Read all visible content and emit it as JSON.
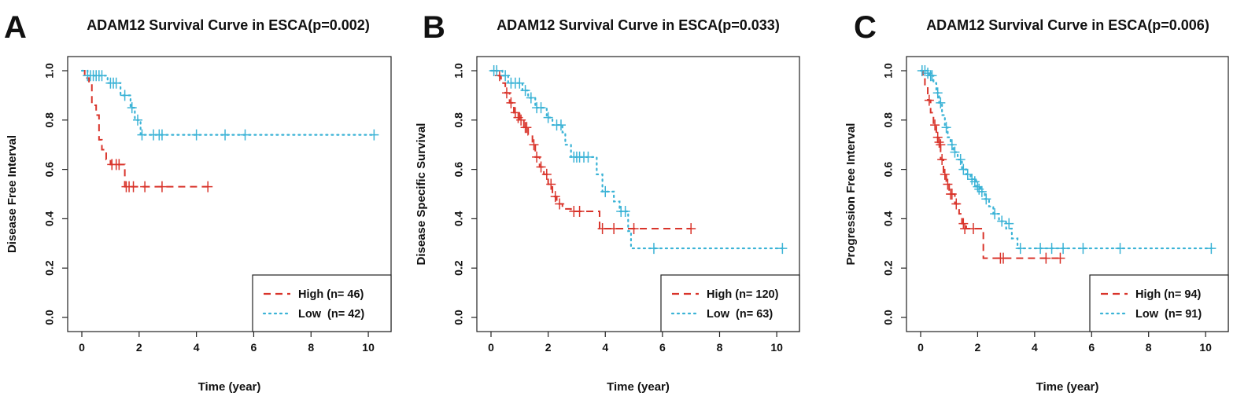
{
  "chart_data": [
    {
      "type": "line",
      "panel": "A",
      "title": "ADAM12 Survival Curve in ESCA(p=0.002)",
      "xlabel": "Time (year)",
      "ylabel": "Disease Free Interval",
      "xlim": [
        0,
        10.3
      ],
      "ylim": [
        0,
        1.0
      ],
      "xticks": [
        "0",
        "2",
        "4",
        "6",
        "8",
        "10"
      ],
      "yticks": [
        "0.0",
        "0.2",
        "0.4",
        "0.6",
        "0.8",
        "1.0"
      ],
      "legend_position": "bottom-right",
      "legend": [
        "High (n= 46)",
        "Low  (n= 42)"
      ],
      "series": [
        {
          "name": "High (n= 46)",
          "color": "#d9342b",
          "style": "dashed",
          "steps": [
            [
              0,
              1.0
            ],
            [
              0.1,
              0.97
            ],
            [
              0.25,
              0.95
            ],
            [
              0.35,
              0.86
            ],
            [
              0.5,
              0.82
            ],
            [
              0.6,
              0.72
            ],
            [
              0.7,
              0.68
            ],
            [
              0.85,
              0.64
            ],
            [
              1.0,
              0.62
            ],
            [
              1.5,
              0.53
            ],
            [
              4.4,
              0.53
            ]
          ],
          "censors": [
            [
              1.05,
              0.62
            ],
            [
              1.2,
              0.62
            ],
            [
              1.3,
              0.62
            ],
            [
              1.55,
              0.53
            ],
            [
              1.65,
              0.53
            ],
            [
              1.8,
              0.53
            ],
            [
              2.2,
              0.53
            ],
            [
              2.8,
              0.53
            ],
            [
              4.4,
              0.53
            ]
          ]
        },
        {
          "name": "Low  (n= 42)",
          "color": "#3bb3d6",
          "style": "dotted",
          "steps": [
            [
              0,
              1.0
            ],
            [
              0.2,
              0.98
            ],
            [
              0.9,
              0.95
            ],
            [
              1.35,
              0.9
            ],
            [
              1.7,
              0.85
            ],
            [
              1.85,
              0.8
            ],
            [
              2.05,
              0.74
            ],
            [
              10.2,
              0.74
            ]
          ],
          "censors": [
            [
              0.2,
              0.98
            ],
            [
              0.3,
              0.98
            ],
            [
              0.4,
              0.98
            ],
            [
              0.5,
              0.98
            ],
            [
              0.6,
              0.98
            ],
            [
              0.7,
              0.98
            ],
            [
              1.0,
              0.95
            ],
            [
              1.1,
              0.95
            ],
            [
              1.2,
              0.95
            ],
            [
              1.5,
              0.9
            ],
            [
              1.75,
              0.85
            ],
            [
              1.95,
              0.8
            ],
            [
              2.1,
              0.74
            ],
            [
              2.5,
              0.74
            ],
            [
              2.7,
              0.74
            ],
            [
              2.8,
              0.74
            ],
            [
              4.0,
              0.74
            ],
            [
              5.0,
              0.74
            ],
            [
              5.7,
              0.74
            ],
            [
              10.2,
              0.74
            ]
          ]
        }
      ]
    },
    {
      "type": "line",
      "panel": "B",
      "title": "ADAM12 Survival Curve in ESCA(p=0.033)",
      "xlabel": "Time (year)",
      "ylabel": "Disease Specific Survival",
      "xlim": [
        0,
        10.3
      ],
      "ylim": [
        0,
        1.0
      ],
      "xticks": [
        "0",
        "2",
        "4",
        "6",
        "8",
        "10"
      ],
      "yticks": [
        "0.0",
        "0.2",
        "0.4",
        "0.6",
        "0.8",
        "1.0"
      ],
      "legend_position": "bottom-right",
      "legend": [
        "High (n= 120)",
        "Low  (n= 63)"
      ],
      "series": [
        {
          "name": "High (n= 120)",
          "color": "#d9342b",
          "style": "dashed",
          "steps": [
            [
              0,
              1.0
            ],
            [
              0.2,
              0.98
            ],
            [
              0.35,
              0.95
            ],
            [
              0.5,
              0.91
            ],
            [
              0.65,
              0.87
            ],
            [
              0.8,
              0.83
            ],
            [
              1.0,
              0.8
            ],
            [
              1.15,
              0.77
            ],
            [
              1.3,
              0.74
            ],
            [
              1.45,
              0.7
            ],
            [
              1.55,
              0.65
            ],
            [
              1.7,
              0.61
            ],
            [
              1.85,
              0.58
            ],
            [
              2.0,
              0.54
            ],
            [
              2.15,
              0.49
            ],
            [
              2.3,
              0.46
            ],
            [
              2.5,
              0.44
            ],
            [
              2.8,
              0.43
            ],
            [
              3.8,
              0.36
            ],
            [
              7.0,
              0.36
            ]
          ],
          "censors": [
            [
              0.3,
              0.98
            ],
            [
              0.55,
              0.91
            ],
            [
              0.7,
              0.87
            ],
            [
              0.85,
              0.83
            ],
            [
              0.95,
              0.81
            ],
            [
              1.05,
              0.8
            ],
            [
              1.2,
              0.77
            ],
            [
              1.25,
              0.77
            ],
            [
              1.5,
              0.7
            ],
            [
              1.6,
              0.65
            ],
            [
              1.75,
              0.61
            ],
            [
              1.95,
              0.58
            ],
            [
              2.1,
              0.54
            ],
            [
              2.25,
              0.49
            ],
            [
              2.4,
              0.46
            ],
            [
              2.9,
              0.43
            ],
            [
              3.1,
              0.43
            ],
            [
              3.9,
              0.36
            ],
            [
              4.3,
              0.36
            ],
            [
              5.0,
              0.36
            ],
            [
              7.0,
              0.36
            ]
          ]
        },
        {
          "name": "Low  (n= 63)",
          "color": "#3bb3d6",
          "style": "dotted",
          "steps": [
            [
              0,
              1.0
            ],
            [
              0.4,
              0.98
            ],
            [
              0.6,
              0.95
            ],
            [
              1.1,
              0.92
            ],
            [
              1.3,
              0.89
            ],
            [
              1.55,
              0.85
            ],
            [
              1.95,
              0.81
            ],
            [
              2.15,
              0.78
            ],
            [
              2.5,
              0.75
            ],
            [
              2.6,
              0.7
            ],
            [
              2.8,
              0.65
            ],
            [
              3.7,
              0.58
            ],
            [
              3.9,
              0.51
            ],
            [
              4.3,
              0.47
            ],
            [
              4.5,
              0.43
            ],
            [
              4.8,
              0.35
            ],
            [
              4.9,
              0.28
            ],
            [
              10.2,
              0.28
            ]
          ],
          "censors": [
            [
              0.1,
              1.0
            ],
            [
              0.2,
              1.0
            ],
            [
              0.5,
              0.98
            ],
            [
              0.7,
              0.95
            ],
            [
              0.85,
              0.95
            ],
            [
              1.0,
              0.95
            ],
            [
              1.2,
              0.92
            ],
            [
              1.4,
              0.89
            ],
            [
              1.6,
              0.85
            ],
            [
              1.75,
              0.85
            ],
            [
              2.0,
              0.81
            ],
            [
              2.3,
              0.78
            ],
            [
              2.45,
              0.78
            ],
            [
              2.9,
              0.65
            ],
            [
              3.0,
              0.65
            ],
            [
              3.1,
              0.65
            ],
            [
              3.25,
              0.65
            ],
            [
              3.4,
              0.65
            ],
            [
              4.0,
              0.51
            ],
            [
              4.55,
              0.43
            ],
            [
              4.7,
              0.43
            ],
            [
              5.7,
              0.28
            ],
            [
              10.2,
              0.28
            ]
          ]
        }
      ]
    },
    {
      "type": "line",
      "panel": "C",
      "title": "ADAM12 Survival Curve in ESCA(p=0.006)",
      "xlabel": "Time (year)",
      "ylabel": "Progression Free Interval",
      "xlim": [
        0,
        10.3
      ],
      "ylim": [
        0,
        1.0
      ],
      "xticks": [
        "0",
        "2",
        "4",
        "6",
        "8",
        "10"
      ],
      "yticks": [
        "0.0",
        "0.2",
        "0.4",
        "0.6",
        "0.8",
        "1.0"
      ],
      "legend_position": "bottom-right",
      "legend": [
        "High (n= 94)",
        "Low  (n= 91)"
      ],
      "series": [
        {
          "name": "High (n= 94)",
          "color": "#d9342b",
          "style": "dashed",
          "steps": [
            [
              0,
              1.0
            ],
            [
              0.08,
              0.97
            ],
            [
              0.15,
              0.94
            ],
            [
              0.25,
              0.88
            ],
            [
              0.35,
              0.83
            ],
            [
              0.45,
              0.78
            ],
            [
              0.55,
              0.73
            ],
            [
              0.6,
              0.7
            ],
            [
              0.7,
              0.64
            ],
            [
              0.8,
              0.58
            ],
            [
              0.9,
              0.54
            ],
            [
              1.0,
              0.5
            ],
            [
              1.2,
              0.46
            ],
            [
              1.35,
              0.42
            ],
            [
              1.45,
              0.38
            ],
            [
              1.6,
              0.36
            ],
            [
              2.2,
              0.24
            ],
            [
              4.9,
              0.24
            ]
          ],
          "censors": [
            [
              0.3,
              0.88
            ],
            [
              0.5,
              0.78
            ],
            [
              0.6,
              0.73
            ],
            [
              0.65,
              0.71
            ],
            [
              0.7,
              0.7
            ],
            [
              0.75,
              0.64
            ],
            [
              0.85,
              0.58
            ],
            [
              0.95,
              0.54
            ],
            [
              1.05,
              0.5
            ],
            [
              1.1,
              0.5
            ],
            [
              1.25,
              0.46
            ],
            [
              1.5,
              0.38
            ],
            [
              1.55,
              0.36
            ],
            [
              1.85,
              0.36
            ],
            [
              2.8,
              0.24
            ],
            [
              2.9,
              0.24
            ],
            [
              4.4,
              0.24
            ],
            [
              4.9,
              0.24
            ]
          ]
        },
        {
          "name": "Low  (n= 91)",
          "color": "#3bb3d6",
          "style": "dotted",
          "steps": [
            [
              0,
              1.0
            ],
            [
              0.3,
              0.98
            ],
            [
              0.45,
              0.95
            ],
            [
              0.55,
              0.91
            ],
            [
              0.65,
              0.87
            ],
            [
              0.75,
              0.82
            ],
            [
              0.85,
              0.77
            ],
            [
              0.95,
              0.73
            ],
            [
              1.05,
              0.7
            ],
            [
              1.15,
              0.67
            ],
            [
              1.3,
              0.64
            ],
            [
              1.45,
              0.6
            ],
            [
              1.6,
              0.58
            ],
            [
              1.75,
              0.56
            ],
            [
              1.95,
              0.53
            ],
            [
              2.1,
              0.51
            ],
            [
              2.25,
              0.48
            ],
            [
              2.4,
              0.45
            ],
            [
              2.55,
              0.42
            ],
            [
              2.75,
              0.39
            ],
            [
              3.0,
              0.36
            ],
            [
              3.2,
              0.32
            ],
            [
              3.4,
              0.28
            ],
            [
              10.2,
              0.28
            ]
          ],
          "censors": [
            [
              0.05,
              1.0
            ],
            [
              0.15,
              1.0
            ],
            [
              0.25,
              0.99
            ],
            [
              0.35,
              0.98
            ],
            [
              0.4,
              0.98
            ],
            [
              0.6,
              0.91
            ],
            [
              0.7,
              0.87
            ],
            [
              0.9,
              0.77
            ],
            [
              1.1,
              0.7
            ],
            [
              1.2,
              0.67
            ],
            [
              1.4,
              0.64
            ],
            [
              1.5,
              0.6
            ],
            [
              1.65,
              0.58
            ],
            [
              1.8,
              0.56
            ],
            [
              1.9,
              0.55
            ],
            [
              2.0,
              0.53
            ],
            [
              2.05,
              0.52
            ],
            [
              2.15,
              0.51
            ],
            [
              2.3,
              0.48
            ],
            [
              2.6,
              0.42
            ],
            [
              2.85,
              0.39
            ],
            [
              3.1,
              0.38
            ],
            [
              3.5,
              0.28
            ],
            [
              4.2,
              0.28
            ],
            [
              4.6,
              0.28
            ],
            [
              5.0,
              0.28
            ],
            [
              5.7,
              0.28
            ],
            [
              7.0,
              0.28
            ],
            [
              10.2,
              0.28
            ]
          ]
        }
      ]
    }
  ]
}
